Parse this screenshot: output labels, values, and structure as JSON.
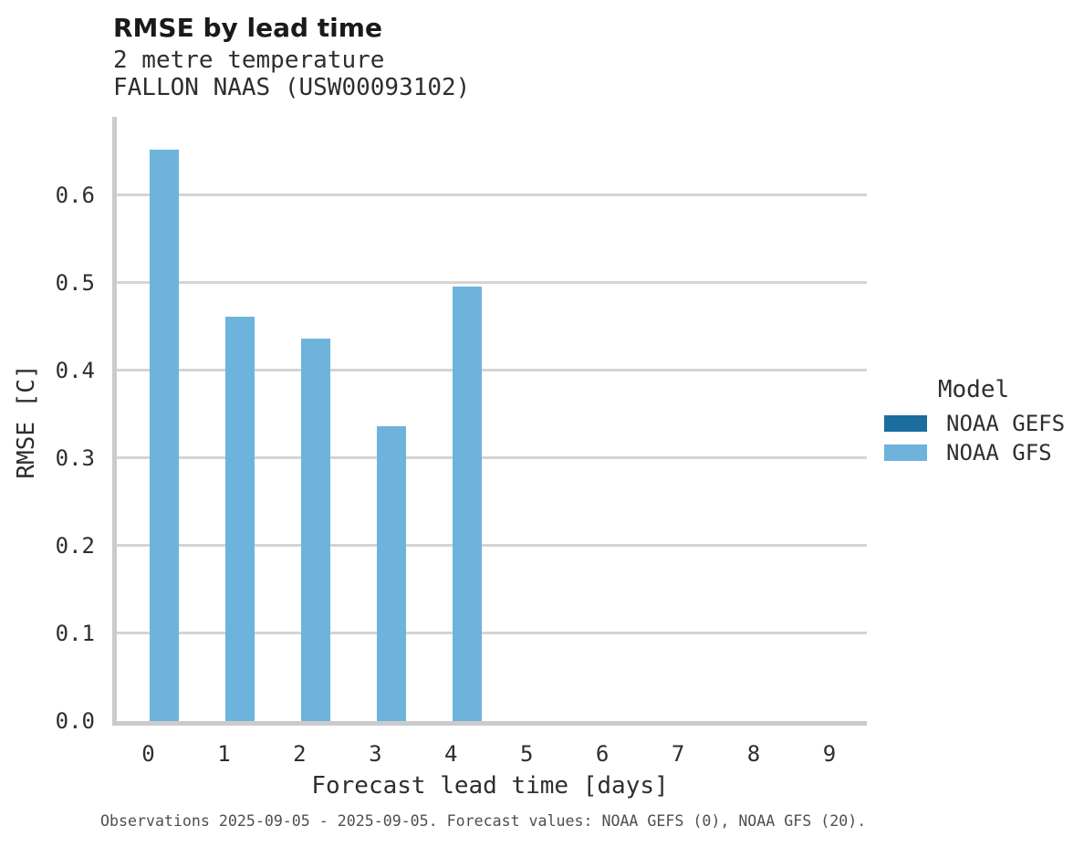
{
  "header": {
    "title": "RMSE by lead time",
    "subtitle": "2 metre temperature",
    "station": "FALLON NAAS (USW00093102)"
  },
  "chart_data": {
    "type": "bar",
    "title": "RMSE by lead time",
    "subtitle": "2 metre temperature",
    "station": "FALLON NAAS (USW00093102)",
    "xlabel": "Forecast lead time [days]",
    "ylabel": "RMSE [C]",
    "categories": [
      0,
      1,
      2,
      3,
      4,
      5,
      6,
      7,
      8,
      9
    ],
    "series": [
      {
        "name": "NOAA GEFS",
        "color": "#1b6d9e",
        "values": [
          null,
          null,
          null,
          null,
          null,
          null,
          null,
          null,
          null,
          null
        ]
      },
      {
        "name": "NOAA GFS",
        "color": "#6db3dc",
        "values": [
          0.652,
          0.461,
          0.436,
          0.336,
          0.495,
          null,
          null,
          null,
          null,
          null
        ]
      }
    ],
    "yticks": [
      0.0,
      0.1,
      0.2,
      0.3,
      0.4,
      0.5,
      0.6
    ],
    "ylim": [
      0,
      0.689
    ],
    "grid": true,
    "legend_position": "right"
  },
  "legend": {
    "title": "Model",
    "items": [
      {
        "label": "NOAA GEFS",
        "color": "#1b6d9e"
      },
      {
        "label": "NOAA GFS",
        "color": "#6db3dc"
      }
    ]
  },
  "footer": {
    "caption": "Observations 2025-09-05 - 2025-09-05. Forecast values: NOAA GEFS (0), NOAA GFS (20)."
  },
  "colors": {
    "bar_light": "#6db3dc",
    "bar_dark": "#1b6d9e",
    "gridline": "#d4d4d4",
    "spine": "#cbcbcb",
    "text": "#2e2e2e",
    "caption_text": "#4f4f4f",
    "background": "#ffffff"
  }
}
